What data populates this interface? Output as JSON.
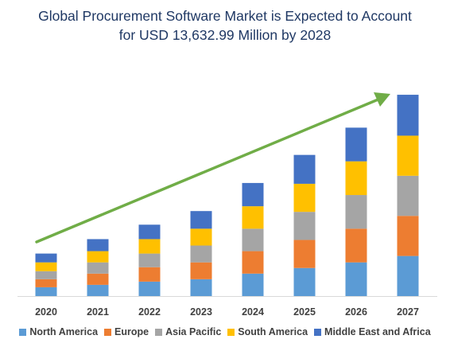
{
  "chart_data": {
    "type": "bar",
    "stacked": true,
    "title": "Global Procurement Software Market is Expected to Account for USD 13,632.99 Million by 2028",
    "title_lines": [
      "Global Procurement Software Market is Expected to Account",
      "for USD 13,632.99 Million by 2028"
    ],
    "categories": [
      "2020",
      "2021",
      "2022",
      "2023",
      "2024",
      "2025",
      "2026",
      "2027"
    ],
    "series": [
      {
        "name": "North America",
        "color": "#5b9bd5",
        "values": [
          11,
          14,
          18,
          21,
          28,
          35,
          42,
          50
        ]
      },
      {
        "name": "Europe",
        "color": "#ed7d31",
        "values": [
          10,
          14,
          18,
          21,
          28,
          35,
          42,
          50
        ]
      },
      {
        "name": "Asia Pacific",
        "color": "#a5a5a5",
        "values": [
          10,
          14,
          17,
          21,
          28,
          35,
          42,
          50
        ]
      },
      {
        "name": "South America",
        "color": "#ffc000",
        "values": [
          11,
          14,
          18,
          21,
          28,
          35,
          42,
          50
        ]
      },
      {
        "name": "Middle East and Africa",
        "color": "#4472c4",
        "values": [
          11,
          15,
          18,
          22,
          29,
          36,
          42,
          51
        ]
      }
    ],
    "xlabel": "",
    "ylabel": "",
    "ylim": [
      0,
      260
    ],
    "grid": false,
    "legend_position": "bottom",
    "annotation": {
      "type": "trend-arrow",
      "color": "#70ad47"
    }
  }
}
